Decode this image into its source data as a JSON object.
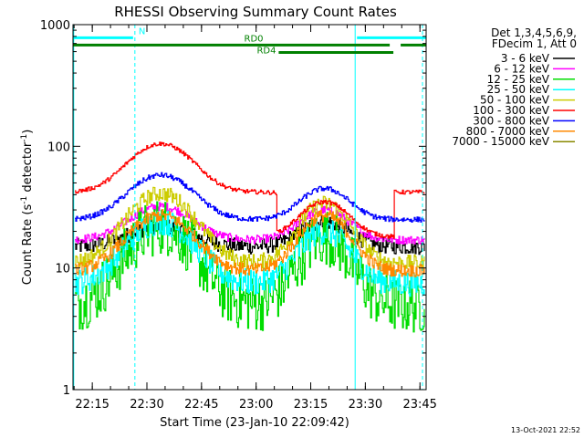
{
  "chart_data": {
    "type": "line",
    "title": "RHESSI Observing Summary Count Rates",
    "xlabel": "Start Time (23-Jan-10 22:09:42)",
    "ylabel_main": "Count Rate (s",
    "ylabel_sup1": "-1",
    "ylabel_mid": " detector",
    "ylabel_sup2": "-1",
    "ylabel_end": ")",
    "timestamp": "13-Oct-2021 22:52",
    "y_scale": "log",
    "ylim": [
      1,
      1000
    ],
    "xlim_minutes": [
      0,
      97
    ],
    "x_ticks": [
      {
        "label": "22:15",
        "min": 5.3
      },
      {
        "label": "22:30",
        "min": 20.3
      },
      {
        "label": "22:45",
        "min": 35.3
      },
      {
        "label": "23:00",
        "min": 50.3
      },
      {
        "label": "23:15",
        "min": 65.3
      },
      {
        "label": "23:30",
        "min": 80.3
      },
      {
        "label": "23:45",
        "min": 95.3
      }
    ],
    "y_ticks": [
      {
        "label": "1",
        "value": 1
      },
      {
        "label": "10",
        "value": 10
      },
      {
        "label": "100",
        "value": 100
      },
      {
        "label": "1000",
        "value": 1000
      }
    ],
    "legend_header": [
      "Det 1,3,4,5,6,9,",
      "FDecim 1, Att 0"
    ],
    "series": [
      {
        "name": "3 - 6 keV",
        "color": "#000000",
        "base": 15,
        "peak1": 22,
        "peak2": 24,
        "noise": 0.15,
        "step_base": 15
      },
      {
        "name": "6 - 12 keV",
        "color": "#ff00ff",
        "base": 17,
        "peak1": 32,
        "peak2": 30,
        "noise": 0.08,
        "step_base": 17
      },
      {
        "name": "12 - 25 keV",
        "color": "#00dd00",
        "base": 5,
        "peak1": 22,
        "peak2": 18,
        "noise": 0.55,
        "step_base": 5
      },
      {
        "name": "25 - 50 keV",
        "color": "#00ffff",
        "base": 7.5,
        "peak1": 24,
        "peak2": 20,
        "noise": 0.25,
        "step_base": 7.5
      },
      {
        "name": "50 - 100 keV",
        "color": "#cccc00",
        "base": 11,
        "peak1": 41,
        "peak2": 34,
        "noise": 0.15,
        "step_base": 11
      },
      {
        "name": "100 - 300 keV",
        "color": "#ff0000",
        "base": 42,
        "peak1": 105,
        "peak2": 35,
        "noise": 0.04,
        "step_base": 42,
        "dip": 18
      },
      {
        "name": "300 - 800 keV",
        "color": "#0000ff",
        "base": 25,
        "peak1": 58,
        "peak2": 45,
        "noise": 0.05,
        "step_base": 25
      },
      {
        "name": "800 - 7000 keV",
        "color": "#ff8800",
        "base": 9.5,
        "peak1": 27,
        "peak2": 27,
        "noise": 0.12,
        "step_base": 9.5
      },
      {
        "name": "7000 - 15000 keV",
        "color": "#888800",
        "base": 14,
        "peak1": 14,
        "peak2": 14,
        "noise": 0.0,
        "step_base": 14,
        "hidden": true
      }
    ],
    "flags": [
      {
        "label": "N",
        "color": "#00ffff",
        "value": 780,
        "segments": [
          [
            0,
            16.5
          ],
          [
            78,
            97
          ]
        ]
      },
      {
        "label": "RD0",
        "color": "#008000",
        "value": 680,
        "segments": [
          [
            0,
            87
          ],
          [
            90,
            97
          ]
        ]
      },
      {
        "label": "RD4",
        "color": "#008000",
        "value": 590,
        "segments": [
          [
            56.5,
            88
          ]
        ]
      }
    ],
    "vlines": [
      {
        "min": 0.2,
        "color": "#00ffff",
        "style": "solid"
      },
      {
        "min": 17.0,
        "color": "#00ffff",
        "style": "dashed"
      },
      {
        "min": 77.5,
        "color": "#00ffff",
        "style": "solid"
      },
      {
        "min": 96.0,
        "color": "#00ffff",
        "style": "dashed"
      }
    ],
    "grid": false
  }
}
